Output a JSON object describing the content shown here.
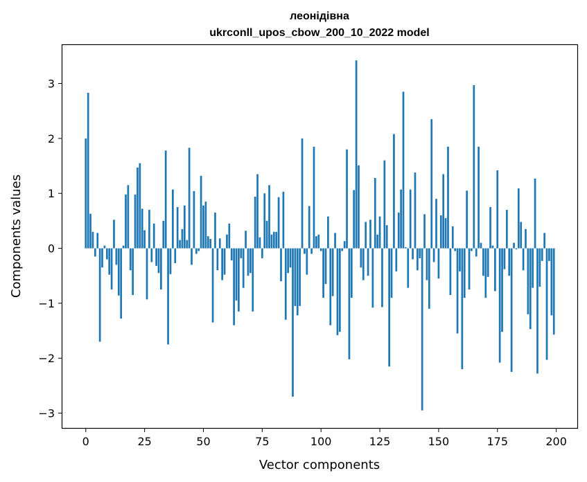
{
  "chart_data": {
    "type": "bar",
    "title": "леонідівна",
    "subtitle": "ukrconll_upos_cbow_200_10_2022 model",
    "xlabel": "Vector components",
    "ylabel": "Components values",
    "xlim": [
      -9.95,
      208.95
    ],
    "ylim": [
      -3.27,
      3.7
    ],
    "xticks": [
      0,
      25,
      50,
      75,
      100,
      125,
      150,
      175,
      200
    ],
    "xtick_labels": [
      "0",
      "25",
      "50",
      "75",
      "100",
      "125",
      "150",
      "175",
      "200"
    ],
    "yticks": [
      -3,
      -2,
      -1,
      0,
      1,
      2,
      3
    ],
    "ytick_labels": [
      "−3",
      "−2",
      "−1",
      "0",
      "1",
      "2",
      "3"
    ],
    "bar_color": "#1f77b4",
    "grid": false,
    "x": [
      0,
      1,
      2,
      3,
      4,
      5,
      6,
      7,
      8,
      9,
      10,
      11,
      12,
      13,
      14,
      15,
      16,
      17,
      18,
      19,
      20,
      21,
      22,
      23,
      24,
      25,
      26,
      27,
      28,
      29,
      30,
      31,
      32,
      33,
      34,
      35,
      36,
      37,
      38,
      39,
      40,
      41,
      42,
      43,
      44,
      45,
      46,
      47,
      48,
      49,
      50,
      51,
      52,
      53,
      54,
      55,
      56,
      57,
      58,
      59,
      60,
      61,
      62,
      63,
      64,
      65,
      66,
      67,
      68,
      69,
      70,
      71,
      72,
      73,
      74,
      75,
      76,
      77,
      78,
      79,
      80,
      81,
      82,
      83,
      84,
      85,
      86,
      87,
      88,
      89,
      90,
      91,
      92,
      93,
      94,
      95,
      96,
      97,
      98,
      99,
      100,
      101,
      102,
      103,
      104,
      105,
      106,
      107,
      108,
      109,
      110,
      111,
      112,
      113,
      114,
      115,
      116,
      117,
      118,
      119,
      120,
      121,
      122,
      123,
      124,
      125,
      126,
      127,
      128,
      129,
      130,
      131,
      132,
      133,
      134,
      135,
      136,
      137,
      138,
      139,
      140,
      141,
      142,
      143,
      144,
      145,
      146,
      147,
      148,
      149,
      150,
      151,
      152,
      153,
      154,
      155,
      156,
      157,
      158,
      159,
      160,
      161,
      162,
      163,
      164,
      165,
      166,
      167,
      168,
      169,
      170,
      171,
      172,
      173,
      174,
      175,
      176,
      177,
      178,
      179,
      180,
      181,
      182,
      183,
      184,
      185,
      186,
      187,
      188,
      189,
      190,
      191,
      192,
      193,
      194,
      195,
      196,
      197,
      198,
      199
    ],
    "values": [
      2.0,
      2.83,
      0.63,
      0.3,
      -0.15,
      0.28,
      -1.7,
      -0.35,
      0.05,
      -0.2,
      -0.48,
      -0.75,
      0.52,
      -0.3,
      -0.86,
      -1.28,
      0.05,
      0.98,
      1.15,
      -0.4,
      -0.85,
      0.98,
      1.47,
      1.55,
      0.72,
      0.33,
      -0.93,
      0.7,
      -0.25,
      0.45,
      -0.32,
      -0.45,
      -0.75,
      0.5,
      1.78,
      -1.75,
      -0.47,
      1.07,
      -0.27,
      0.75,
      0.15,
      0.35,
      0.78,
      0.15,
      1.83,
      -0.3,
      1.04,
      -0.1,
      -0.05,
      1.32,
      0.78,
      0.85,
      0.22,
      0.17,
      -1.35,
      0.65,
      -0.4,
      0.18,
      -0.58,
      -0.48,
      0.25,
      0.45,
      -0.22,
      -1.4,
      -0.95,
      -1.15,
      -0.18,
      -0.72,
      0.32,
      -0.5,
      -0.45,
      -1.15,
      0.94,
      1.35,
      0.2,
      -0.18,
      1.0,
      0.5,
      1.15,
      0.25,
      0.3,
      0.3,
      0.93,
      -0.6,
      1.03,
      -1.3,
      -0.45,
      -0.35,
      -2.7,
      -1.05,
      -1.22,
      -1.05,
      2.0,
      -0.1,
      -0.48,
      0.77,
      -0.1,
      1.85,
      0.22,
      0.25,
      -0.05,
      -0.9,
      -0.65,
      0.58,
      -1.4,
      -0.87,
      0.28,
      -1.58,
      -1.52,
      -0.05,
      0.13,
      1.8,
      -2.02,
      -0.9,
      1.06,
      3.42,
      1.51,
      -0.35,
      -0.58,
      0.48,
      -0.5,
      0.52,
      -1.08,
      1.28,
      0.25,
      0.58,
      -1.07,
      1.6,
      0.42,
      -2.15,
      -0.9,
      2.08,
      -0.42,
      0.65,
      1.07,
      2.85,
      0.02,
      -0.72,
      1.07,
      -0.2,
      1.38,
      -0.4,
      -0.18,
      -2.95,
      0.62,
      -0.58,
      -1.1,
      2.35,
      -0.25,
      0.9,
      -0.55,
      0.6,
      1.35,
      0.55,
      1.85,
      -0.85,
      0.4,
      -0.05,
      -1.55,
      -0.42,
      -2.2,
      -0.9,
      1.05,
      -0.75,
      -0.05,
      2.97,
      -0.15,
      1.85,
      0.1,
      -0.5,
      -0.9,
      -0.52,
      0.75,
      0.05,
      -0.78,
      1.42,
      -2.08,
      -1.52,
      -0.38,
      0.7,
      -0.5,
      -2.25,
      0.1,
      -0.02,
      1.09,
      0.48,
      -0.4,
      0.35,
      -1.2,
      -1.47,
      -0.72,
      1.27,
      -2.28,
      -0.7,
      -0.23,
      0.28,
      -2.03,
      -0.23,
      -1.22,
      -1.57
    ]
  }
}
